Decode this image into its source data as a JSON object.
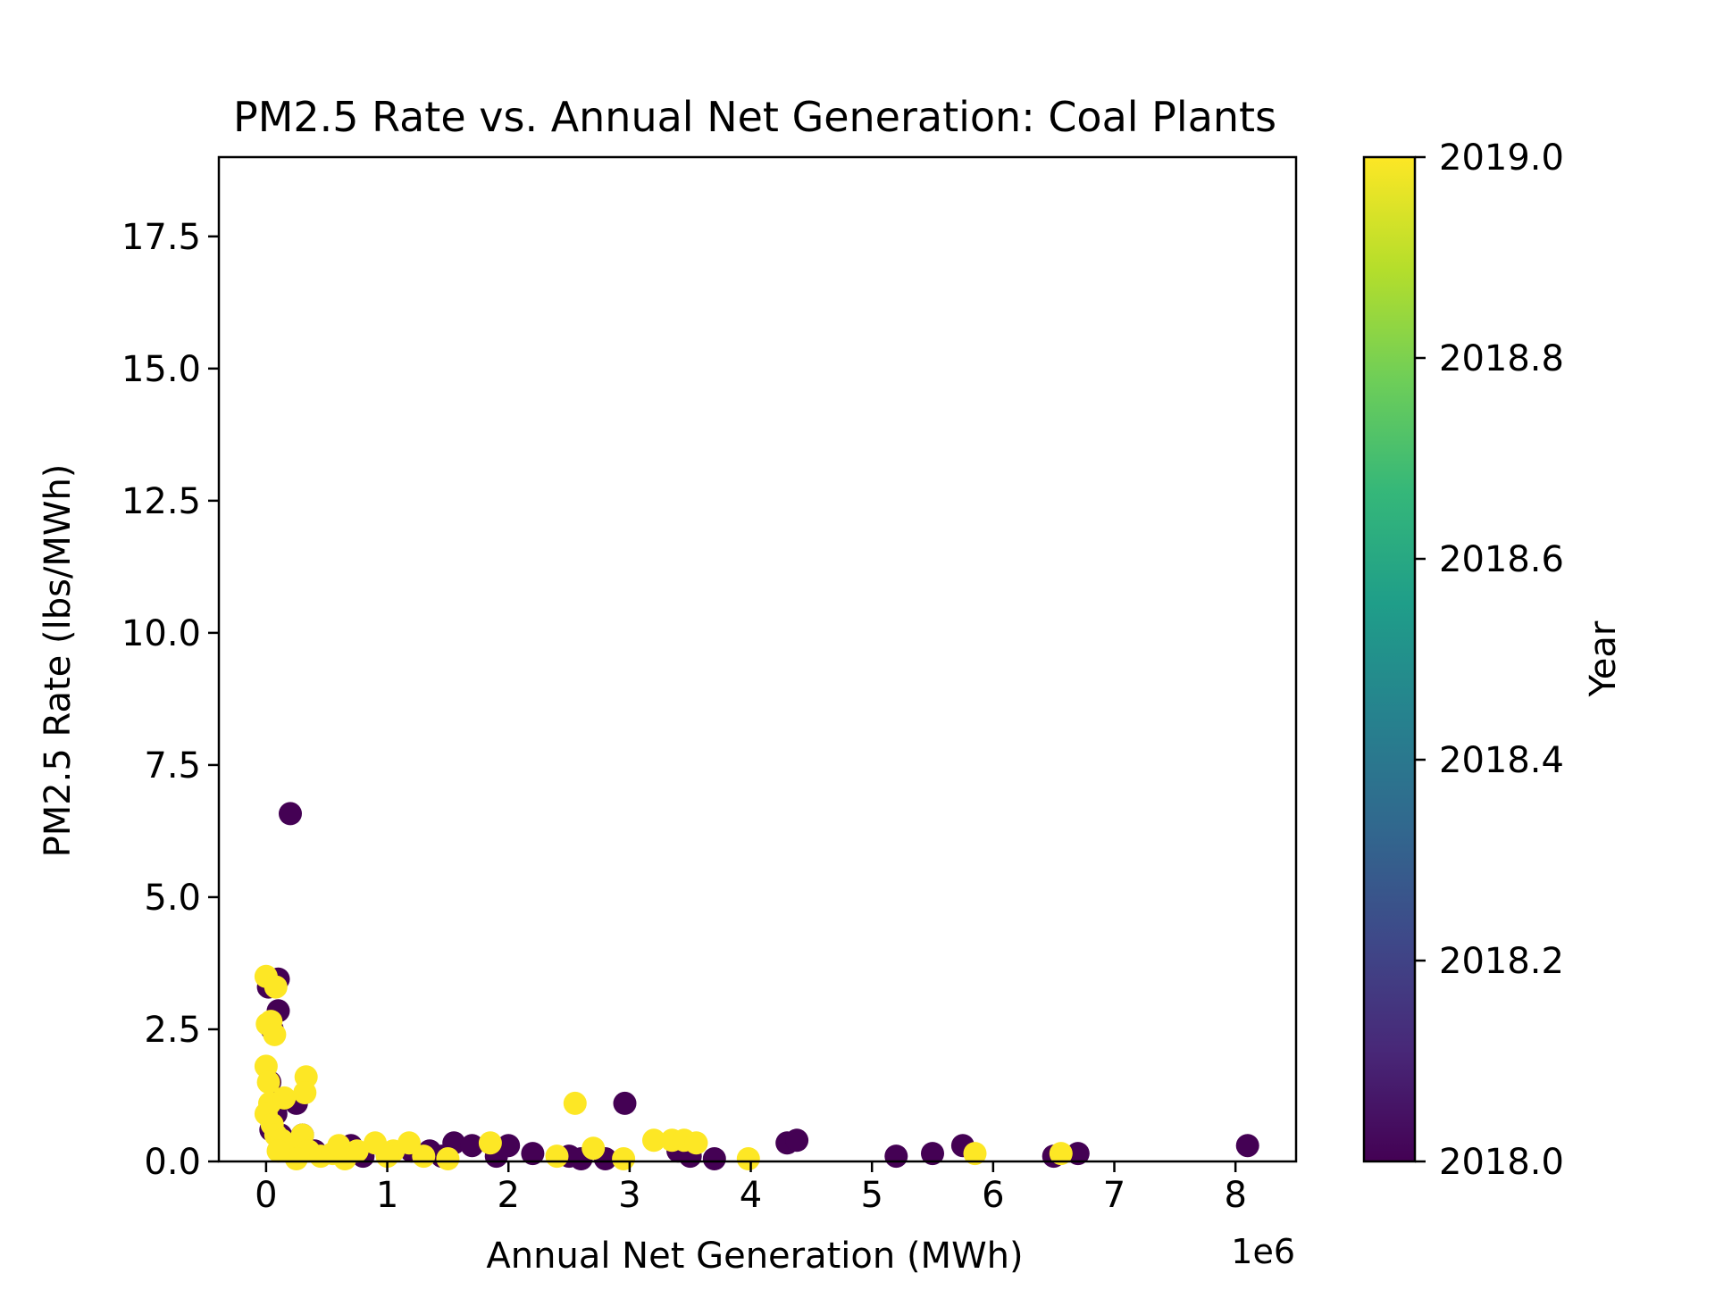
{
  "chart_data": {
    "type": "scatter",
    "title": "PM2.5 Rate vs. Annual Net Generation: Coal Plants",
    "xlabel": "Annual Net Generation (MWh)",
    "ylabel": "PM2.5 Rate (lbs/MWh)",
    "x_offset_label": "1e6",
    "x_scale_factor": 1000000,
    "xlim": [
      -390000,
      8500000
    ],
    "ylim": [
      0.0,
      19.0
    ],
    "xticks": [
      0,
      1,
      2,
      3,
      4,
      5,
      6,
      7,
      8
    ],
    "yticks": [
      "0.0",
      "2.5",
      "5.0",
      "7.5",
      "10.0",
      "12.5",
      "15.0",
      "17.5"
    ],
    "colorbar": {
      "label": "Year",
      "colormap": "viridis",
      "range": [
        2018.0,
        2019.0
      ],
      "ticks": [
        "2018.0",
        "2018.2",
        "2018.4",
        "2018.6",
        "2018.8",
        "2019.0"
      ],
      "colors": [
        "#440154",
        "#482878",
        "#3e4989",
        "#31688e",
        "#26828e",
        "#1f9e89",
        "#35b779",
        "#6ece58",
        "#b5de2b",
        "#fde725"
      ]
    },
    "grid": false,
    "legend": "none",
    "series": [
      {
        "year": 2018,
        "color": "#440154",
        "points": [
          [
            200000,
            6.58
          ],
          [
            100000,
            3.45
          ],
          [
            100000,
            2.85
          ],
          [
            20000,
            3.3
          ],
          [
            50000,
            2.5
          ],
          [
            250000,
            1.1
          ],
          [
            80000,
            0.9
          ],
          [
            30000,
            1.5
          ],
          [
            40000,
            0.6
          ],
          [
            120000,
            0.5
          ],
          [
            180000,
            0.3
          ],
          [
            300000,
            0.5
          ],
          [
            400000,
            0.2
          ],
          [
            600000,
            0.25
          ],
          [
            700000,
            0.3
          ],
          [
            800000,
            0.1
          ],
          [
            1000000,
            0.15
          ],
          [
            1200000,
            0.2
          ],
          [
            1350000,
            0.2
          ],
          [
            1550000,
            0.35
          ],
          [
            1700000,
            0.3
          ],
          [
            2000000,
            0.3
          ],
          [
            2200000,
            0.15
          ],
          [
            2500000,
            0.1
          ],
          [
            2800000,
            0.05
          ],
          [
            2960000,
            1.1
          ],
          [
            3500000,
            0.1
          ],
          [
            3700000,
            0.05
          ],
          [
            4300000,
            0.35
          ],
          [
            4380000,
            0.4
          ],
          [
            5200000,
            0.1
          ],
          [
            5500000,
            0.15
          ],
          [
            5750000,
            0.3
          ],
          [
            6500000,
            0.1
          ],
          [
            6700000,
            0.15
          ],
          [
            8100000,
            0.3
          ],
          [
            3400000,
            0.2
          ],
          [
            1900000,
            0.1
          ],
          [
            2600000,
            0.05
          ],
          [
            1450000,
            0.1
          ]
        ]
      },
      {
        "year": 2019,
        "color": "#fde725",
        "points": [
          [
            0,
            3.5
          ],
          [
            80000,
            3.3
          ],
          [
            10000,
            2.6
          ],
          [
            40000,
            2.65
          ],
          [
            70000,
            2.4
          ],
          [
            0,
            1.8
          ],
          [
            20000,
            1.5
          ],
          [
            30000,
            1.1
          ],
          [
            150000,
            1.2
          ],
          [
            330000,
            1.6
          ],
          [
            320000,
            1.3
          ],
          [
            0,
            0.9
          ],
          [
            50000,
            0.7
          ],
          [
            80000,
            0.5
          ],
          [
            130000,
            0.4
          ],
          [
            200000,
            0.3
          ],
          [
            300000,
            0.5
          ],
          [
            350000,
            0.2
          ],
          [
            450000,
            0.1
          ],
          [
            550000,
            0.15
          ],
          [
            650000,
            0.05
          ],
          [
            750000,
            0.2
          ],
          [
            900000,
            0.35
          ],
          [
            1050000,
            0.2
          ],
          [
            1180000,
            0.35
          ],
          [
            1300000,
            0.1
          ],
          [
            1500000,
            0.05
          ],
          [
            1850000,
            0.35
          ],
          [
            2400000,
            0.1
          ],
          [
            2550000,
            1.1
          ],
          [
            2700000,
            0.25
          ],
          [
            2950000,
            0.05
          ],
          [
            3200000,
            0.4
          ],
          [
            3350000,
            0.4
          ],
          [
            3450000,
            0.4
          ],
          [
            3550000,
            0.35
          ],
          [
            3980000,
            0.05
          ],
          [
            5850000,
            0.15
          ],
          [
            6560000,
            0.15
          ],
          [
            600000,
            0.3
          ],
          [
            1000000,
            0.1
          ],
          [
            250000,
            0.05
          ],
          [
            100000,
            0.2
          ]
        ]
      }
    ]
  }
}
